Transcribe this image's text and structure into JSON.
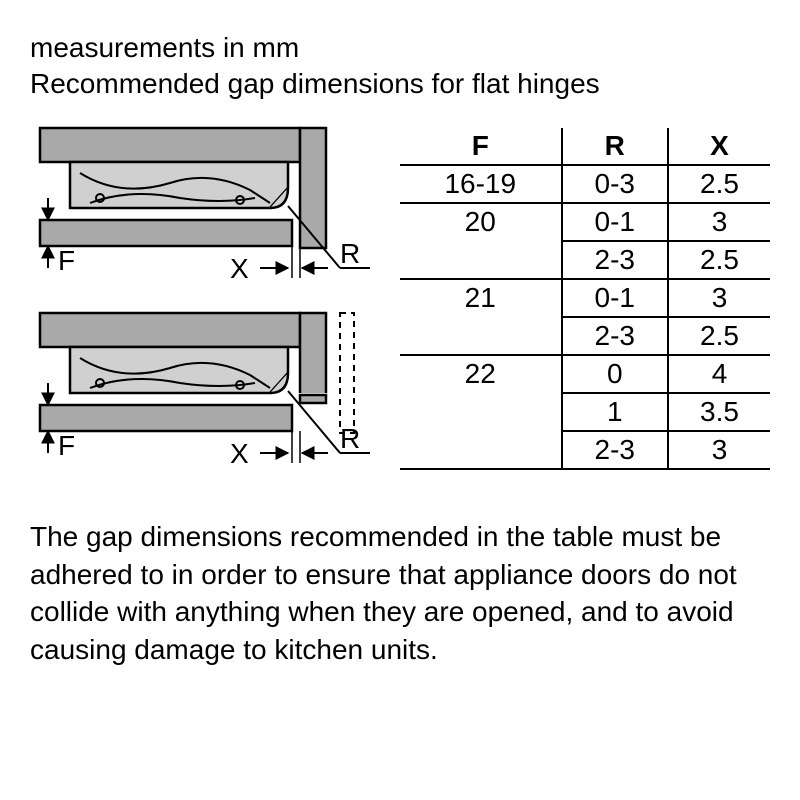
{
  "header": {
    "line1": "measurements in mm",
    "line2": "Recommended gap dimensions for flat hinges"
  },
  "diagrams": {
    "labels": {
      "F": "F",
      "X": "X",
      "R": "R"
    },
    "colors": {
      "outline": "#000000",
      "fill_cabinet": "#a9a9a9",
      "fill_hinge": "#d0d0d0",
      "background": "#ffffff"
    },
    "stroke_width": 2.5
  },
  "table": {
    "columns": [
      "F",
      "R",
      "X"
    ],
    "groups": [
      {
        "F": "16-19",
        "rows": [
          {
            "R": "0-3",
            "X": "2.5"
          }
        ]
      },
      {
        "F": "20",
        "rows": [
          {
            "R": "0-1",
            "X": "3"
          },
          {
            "R": "2-3",
            "X": "2.5"
          }
        ]
      },
      {
        "F": "21",
        "rows": [
          {
            "R": "0-1",
            "X": "3"
          },
          {
            "R": "2-3",
            "X": "2.5"
          }
        ]
      },
      {
        "F": "22",
        "rows": [
          {
            "R": "0",
            "X": "4"
          },
          {
            "R": "1",
            "X": "3.5"
          },
          {
            "R": "2-3",
            "X": "3"
          }
        ]
      }
    ],
    "header_fontweight": "bold",
    "fontsize": 28,
    "border_color": "#000000",
    "border_width": 2
  },
  "footer": {
    "text": "The gap dimensions recommended in the table must be adhered to in order to ensure that appliance doors do not collide with anything when they are opened, and to avoid causing damage to kitchen units."
  }
}
